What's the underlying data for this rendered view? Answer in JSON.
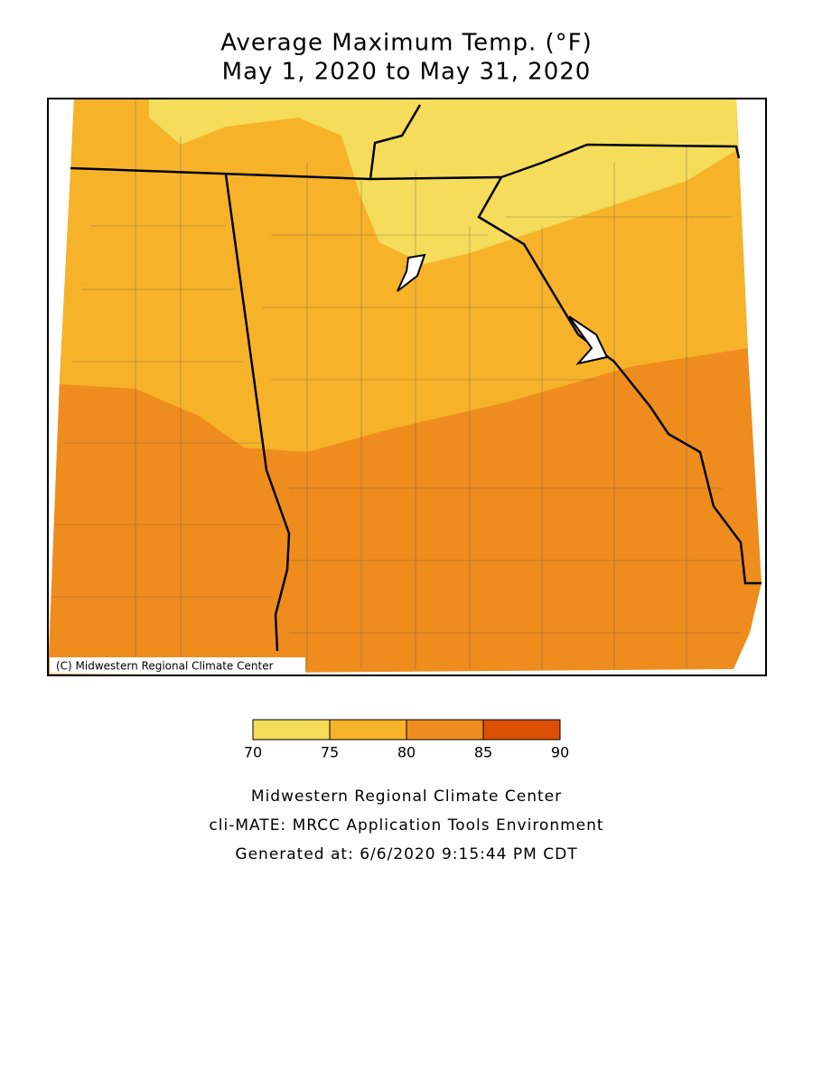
{
  "title": [
    "Average Maximum Temp. (°F)",
    "May 1, 2020 to May 31, 2020"
  ],
  "map": {
    "copyright": "(C) Midwestern Regional Climate Center"
  },
  "legend": {
    "ticks": [
      70,
      75,
      80,
      85,
      90
    ],
    "colors": [
      "#f5dc5a",
      "#f6b32a",
      "#ef8c1e",
      "#dc5005"
    ]
  },
  "footer": [
    "Midwestern Regional Climate Center",
    "cli-MATE: MRCC Application Tools Environment",
    "Generated at: 6/6/2020 9:15:44 PM CDT"
  ]
}
